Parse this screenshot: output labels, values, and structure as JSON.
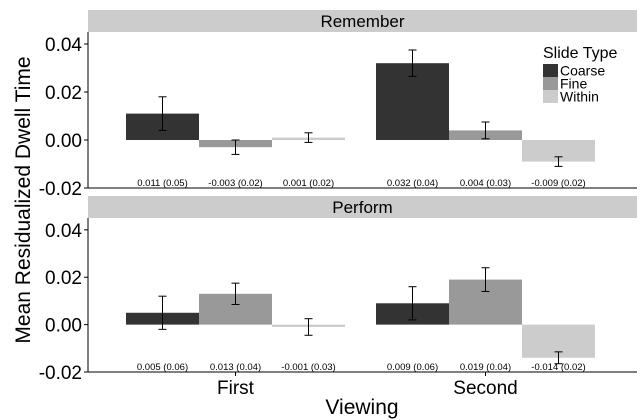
{
  "chart_data": {
    "type": "bar",
    "ylabel": "Mean Residualized Dwell Time",
    "xlabel": "Viewing",
    "categories": [
      "First",
      "Second"
    ],
    "ylim": [
      -0.02,
      0.045
    ],
    "yticks": [
      "-0.02",
      "0.00",
      "0.02",
      "0.04"
    ],
    "ytick_values": [
      -0.02,
      0.0,
      0.02,
      0.04
    ],
    "grid": false,
    "legend_title": "Slide Type",
    "legend_position": "top-right",
    "series": [
      {
        "name": "Coarse",
        "color": "#333333"
      },
      {
        "name": "Fine",
        "color": "#999999"
      },
      {
        "name": "Within",
        "color": "#cccccc"
      }
    ],
    "panels": [
      {
        "title": "Remember",
        "bars": [
          {
            "category": "First",
            "series": "Coarse",
            "value": 0.011,
            "se": 0.007,
            "label": "0.011 (0.05)"
          },
          {
            "category": "First",
            "series": "Fine",
            "value": -0.003,
            "se": 0.003,
            "label": "-0.003 (0.02)"
          },
          {
            "category": "First",
            "series": "Within",
            "value": 0.001,
            "se": 0.002,
            "label": "0.001 (0.02)"
          },
          {
            "category": "Second",
            "series": "Coarse",
            "value": 0.032,
            "se": 0.0055,
            "label": "0.032 (0.04)"
          },
          {
            "category": "Second",
            "series": "Fine",
            "value": 0.004,
            "se": 0.0035,
            "label": "0.004 (0.03)"
          },
          {
            "category": "Second",
            "series": "Within",
            "value": -0.009,
            "se": 0.002,
            "label": "-0.009 (0.02)"
          }
        ]
      },
      {
        "title": "Perform",
        "bars": [
          {
            "category": "First",
            "series": "Coarse",
            "value": 0.005,
            "se": 0.007,
            "label": "0.005 (0.06)"
          },
          {
            "category": "First",
            "series": "Fine",
            "value": 0.013,
            "se": 0.0045,
            "label": "0.013 (0.04)"
          },
          {
            "category": "First",
            "series": "Within",
            "value": -0.001,
            "se": 0.0035,
            "label": "-0.001 (0.03)"
          },
          {
            "category": "Second",
            "series": "Coarse",
            "value": 0.009,
            "se": 0.007,
            "label": "0.009 (0.06)"
          },
          {
            "category": "Second",
            "series": "Fine",
            "value": 0.019,
            "se": 0.005,
            "label": "0.019 (0.04)"
          },
          {
            "category": "Second",
            "series": "Within",
            "value": -0.014,
            "se": 0.0025,
            "label": "-0.014 (0.02)"
          }
        ]
      }
    ]
  }
}
